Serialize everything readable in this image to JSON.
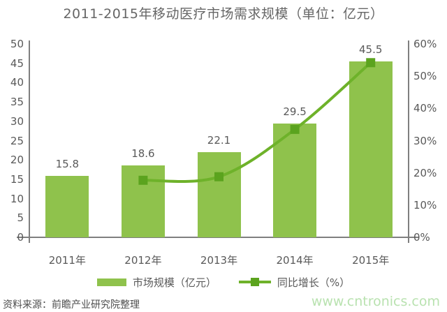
{
  "chart_data": {
    "type": "bar+line",
    "title": "2011-2015年移动医疗市场需求规模（单位：亿元）",
    "categories": [
      "2011年",
      "2012年",
      "2013年",
      "2014年",
      "2015年"
    ],
    "series": [
      {
        "name": "市场规模（亿元）",
        "type": "bar",
        "axis": "left",
        "values": [
          15.8,
          18.6,
          22.1,
          29.5,
          45.5
        ],
        "labels": [
          "15.8",
          "18.6",
          "22.1",
          "29.5",
          "45.5"
        ]
      },
      {
        "name": "同比增长（%）",
        "type": "line",
        "axis": "right",
        "values": [
          null,
          17.7,
          18.8,
          33.5,
          54.2
        ]
      }
    ],
    "left_axis": {
      "min": 0,
      "max": 50,
      "step": 5,
      "ticks": [
        "0",
        "5",
        "10",
        "15",
        "20",
        "25",
        "30",
        "35",
        "40",
        "45",
        "50"
      ]
    },
    "right_axis": {
      "min": 0,
      "max": 60,
      "step": 10,
      "ticks": [
        "0%",
        "10%",
        "20%",
        "30%",
        "40%",
        "50%",
        "60%"
      ]
    },
    "grid": false,
    "legend_position": "bottom"
  },
  "footer": {
    "source": "资料来源：前瞻产业研究院整理",
    "watermark": "www.cntronics.com"
  },
  "colors": {
    "bar": "#8fc24c",
    "line": "#6eb22a",
    "marker": "#5ba31e",
    "axis": "#7f7f7f",
    "text": "#595959",
    "watermark": "#b9e2b0"
  }
}
